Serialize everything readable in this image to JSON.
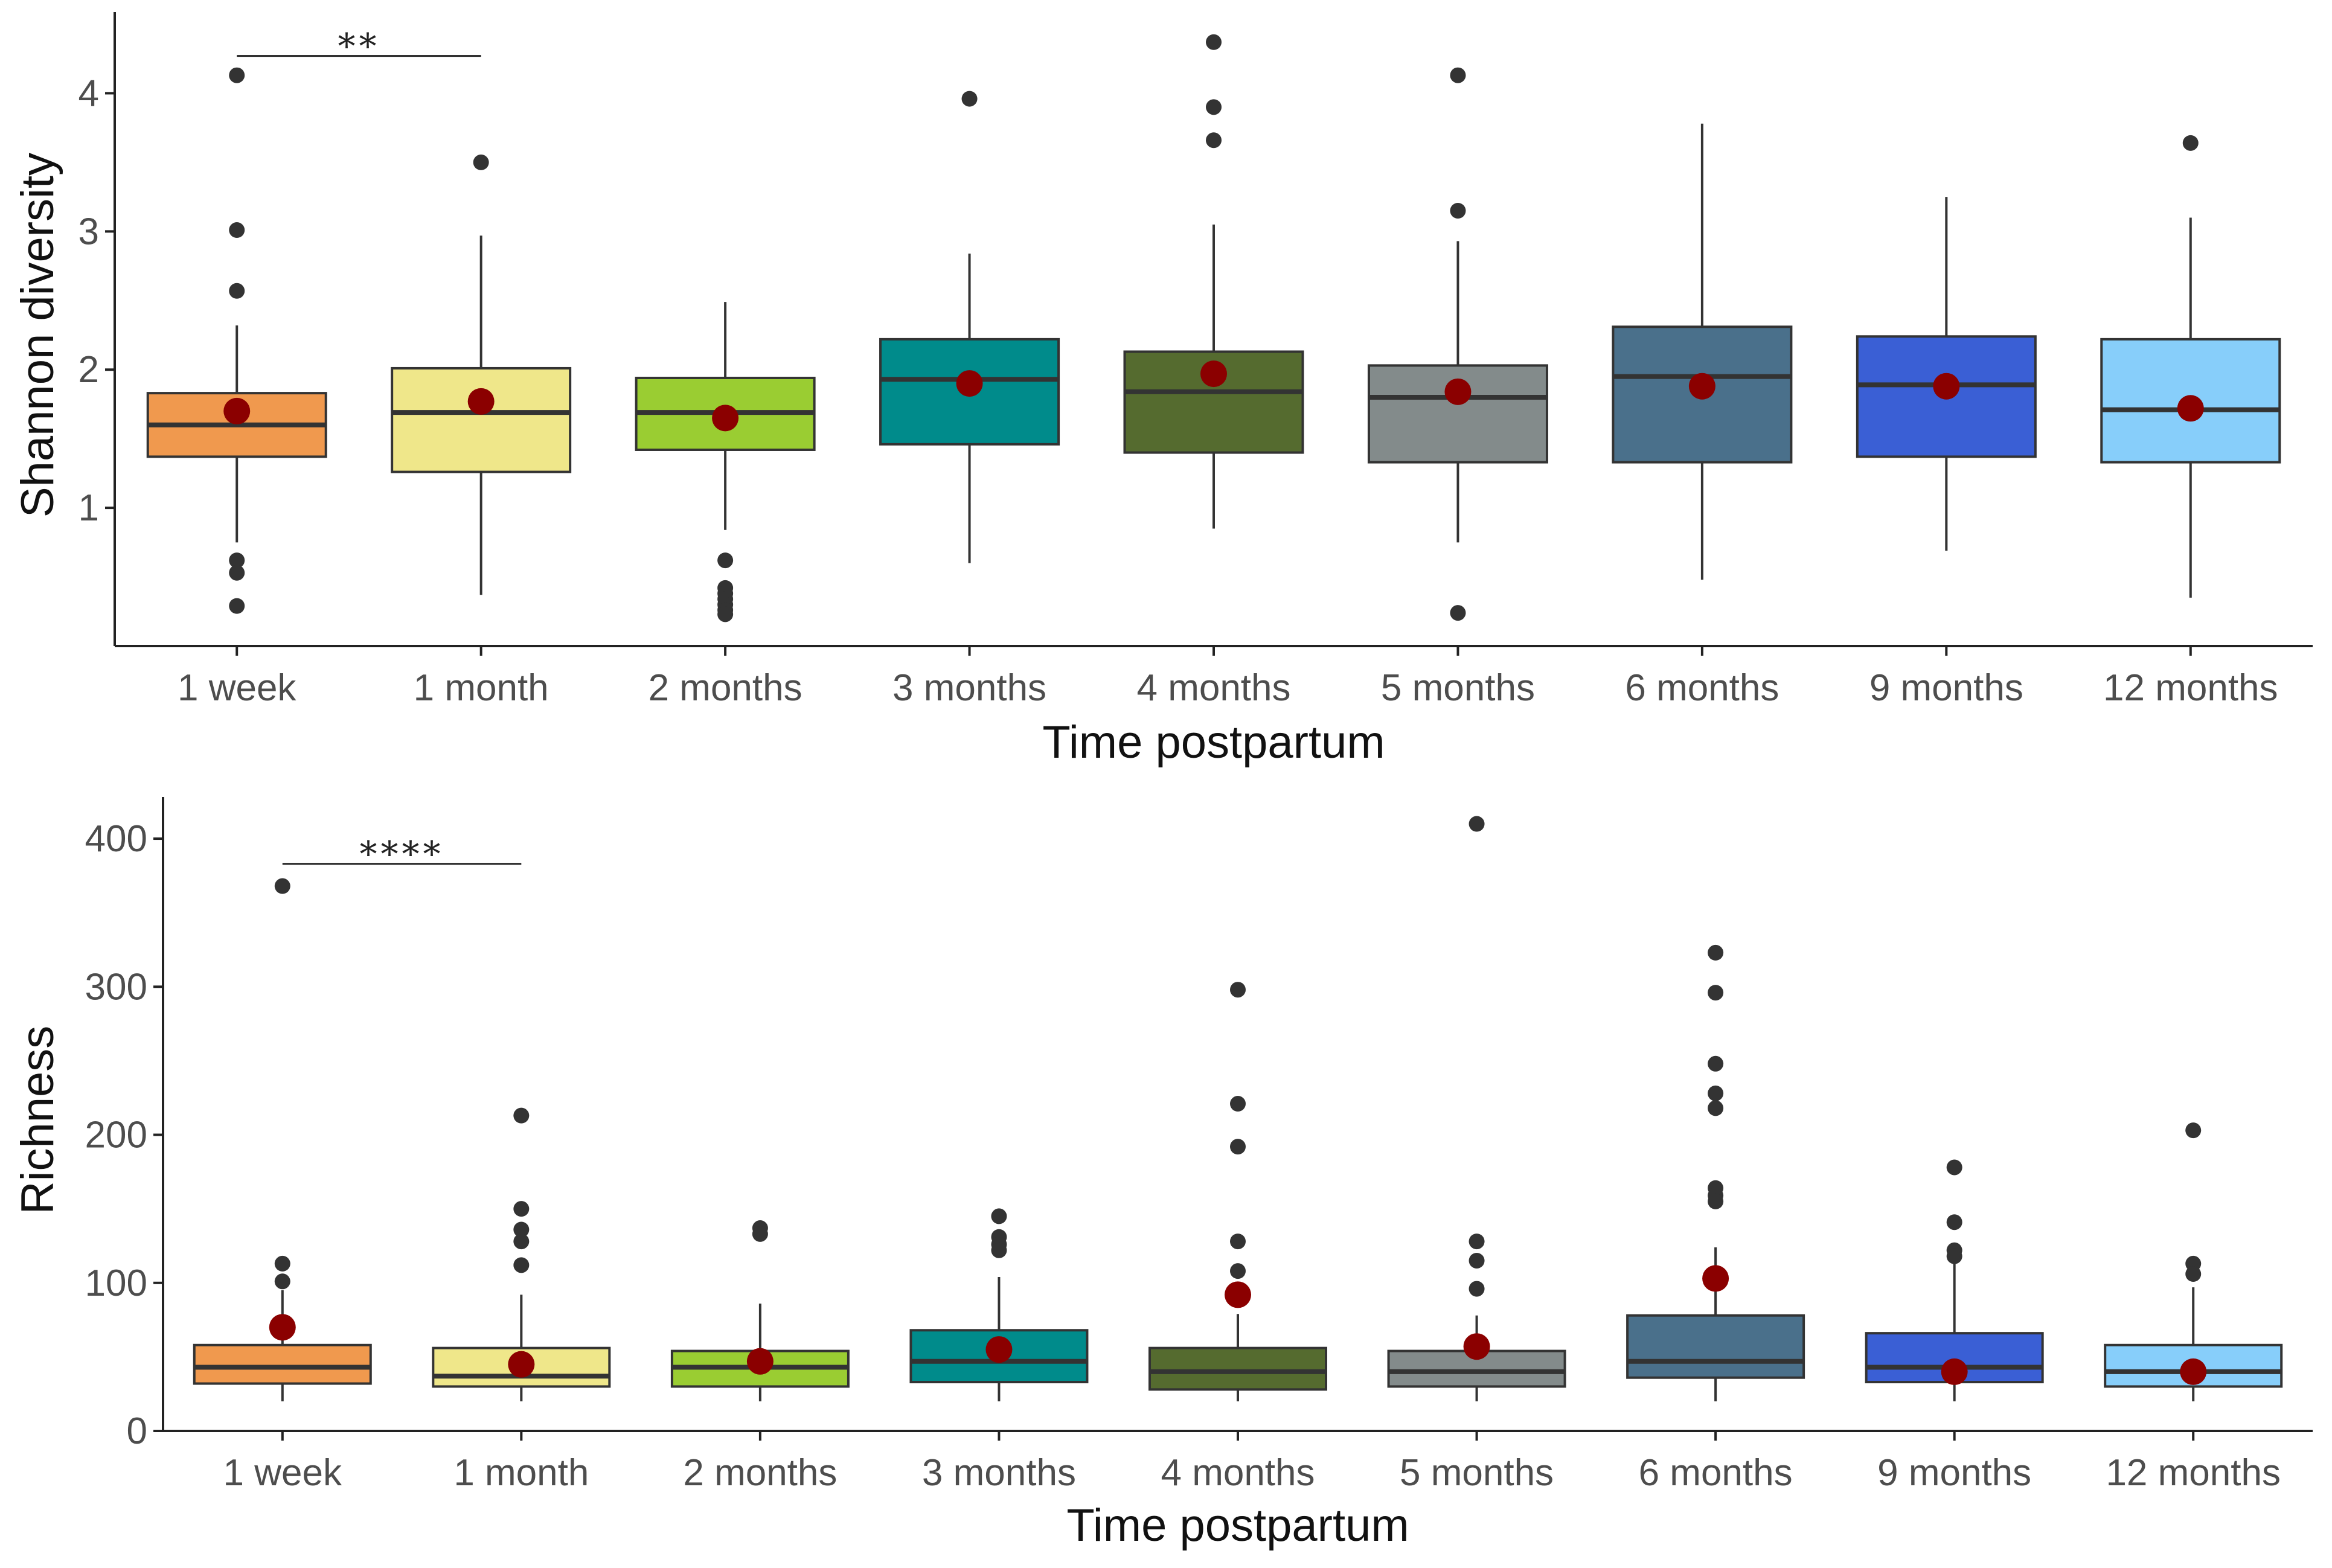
{
  "chart_data": [
    {
      "type": "box",
      "panel": "top",
      "xlabel": "Time postpartum",
      "ylabel": "Shannon diversity",
      "ylim": [
        0.0,
        4.5
      ],
      "yticks": [
        1,
        2,
        3,
        4
      ],
      "yticklabels": [
        "1",
        "2",
        "3",
        "4"
      ],
      "grid": false,
      "categories": [
        "1 week",
        "1 month",
        "2 months",
        "3 months",
        "4 months",
        "5 months",
        "6 months",
        "9 months",
        "12 months"
      ],
      "colors": [
        "#F0994E",
        "#EFE78A",
        "#9ACD32",
        "#008B8B",
        "#556B2F",
        "#838B8B",
        "#4A708B",
        "#3A5FD5",
        "#87CEFA"
      ],
      "boxes": [
        {
          "q1": 1.37,
          "median": 1.6,
          "q3": 1.83,
          "whisker_low": 0.75,
          "whisker_high": 2.32,
          "mean": 1.7,
          "outliers": [
            4.13,
            3.01,
            2.57,
            0.62,
            0.53,
            0.29
          ]
        },
        {
          "q1": 1.26,
          "median": 1.69,
          "q3": 2.01,
          "whisker_low": 0.37,
          "whisker_high": 2.97,
          "mean": 1.77,
          "outliers": [
            3.5
          ]
        },
        {
          "q1": 1.42,
          "median": 1.69,
          "q3": 1.94,
          "whisker_low": 0.84,
          "whisker_high": 2.49,
          "mean": 1.65,
          "outliers": [
            0.62,
            0.42,
            0.38,
            0.34,
            0.3,
            0.26,
            0.23
          ]
        },
        {
          "q1": 1.46,
          "median": 1.93,
          "q3": 2.22,
          "whisker_low": 0.6,
          "whisker_high": 2.84,
          "mean": 1.9,
          "outliers": [
            3.96
          ]
        },
        {
          "q1": 1.4,
          "median": 1.84,
          "q3": 2.13,
          "whisker_low": 0.85,
          "whisker_high": 3.05,
          "mean": 1.97,
          "outliers": [
            4.37,
            3.9,
            3.66
          ]
        },
        {
          "q1": 1.33,
          "median": 1.8,
          "q3": 2.03,
          "whisker_low": 0.75,
          "whisker_high": 2.93,
          "mean": 1.84,
          "outliers": [
            4.13,
            3.15,
            0.24
          ]
        },
        {
          "q1": 1.33,
          "median": 1.95,
          "q3": 2.31,
          "whisker_low": 0.48,
          "whisker_high": 3.78,
          "mean": 1.88,
          "outliers": []
        },
        {
          "q1": 1.37,
          "median": 1.89,
          "q3": 2.24,
          "whisker_low": 0.69,
          "whisker_high": 3.25,
          "mean": 1.88,
          "outliers": []
        },
        {
          "q1": 1.33,
          "median": 1.71,
          "q3": 2.22,
          "whisker_low": 0.35,
          "whisker_high": 3.1,
          "mean": 1.72,
          "outliers": [
            3.64
          ]
        }
      ],
      "significance": {
        "from": 0,
        "to": 1,
        "y": 4.27,
        "label": "**"
      }
    },
    {
      "type": "box",
      "panel": "bottom",
      "xlabel": "Time postpartum",
      "ylabel": "Richness",
      "ylim": [
        0,
        420
      ],
      "yticks": [
        0,
        100,
        200,
        300,
        400
      ],
      "yticklabels": [
        "0",
        "100",
        "200",
        "300",
        "400"
      ],
      "grid": false,
      "categories": [
        "1 week",
        "1 month",
        "2 months",
        "3 months",
        "4 months",
        "5 months",
        "6 months",
        "9 months",
        "12 months"
      ],
      "colors": [
        "#F0994E",
        "#EFE78A",
        "#9ACD32",
        "#008B8B",
        "#556B2F",
        "#838B8B",
        "#4A708B",
        "#3A5FD5",
        "#87CEFA"
      ],
      "boxes": [
        {
          "q1": 32,
          "median": 43,
          "q3": 58,
          "whisker_low": 20,
          "whisker_high": 95,
          "mean": 70,
          "outliers": [
            368,
            113,
            101
          ]
        },
        {
          "q1": 30,
          "median": 37,
          "q3": 56,
          "whisker_low": 20,
          "whisker_high": 92,
          "mean": 45,
          "outliers": [
            213,
            150,
            136,
            128,
            112
          ]
        },
        {
          "q1": 30,
          "median": 43,
          "q3": 54,
          "whisker_low": 20,
          "whisker_high": 86,
          "mean": 47,
          "outliers": [
            137,
            133
          ]
        },
        {
          "q1": 33,
          "median": 47,
          "q3": 68,
          "whisker_low": 20,
          "whisker_high": 104,
          "mean": 55,
          "outliers": [
            145,
            131,
            126,
            122
          ]
        },
        {
          "q1": 28,
          "median": 40,
          "q3": 56,
          "whisker_low": 20,
          "whisker_high": 79,
          "mean": 92,
          "outliers": [
            298,
            221,
            192,
            128,
            108
          ]
        },
        {
          "q1": 30,
          "median": 40,
          "q3": 54,
          "whisker_low": 20,
          "whisker_high": 78,
          "mean": 57,
          "outliers": [
            410,
            128,
            115,
            96
          ]
        },
        {
          "q1": 36,
          "median": 47,
          "q3": 78,
          "whisker_low": 20,
          "whisker_high": 124,
          "mean": 103,
          "outliers": [
            323,
            296,
            248,
            228,
            218,
            164,
            159,
            155
          ]
        },
        {
          "q1": 33,
          "median": 43,
          "q3": 66,
          "whisker_low": 20,
          "whisker_high": 114,
          "mean": 40,
          "outliers": [
            178,
            141,
            122,
            118
          ]
        },
        {
          "q1": 30,
          "median": 40,
          "q3": 58,
          "whisker_low": 20,
          "whisker_high": 97,
          "mean": 40,
          "outliers": [
            203,
            113,
            106
          ]
        }
      ],
      "significance": {
        "from": 0,
        "to": 1,
        "y": 383,
        "label": "****"
      }
    }
  ]
}
